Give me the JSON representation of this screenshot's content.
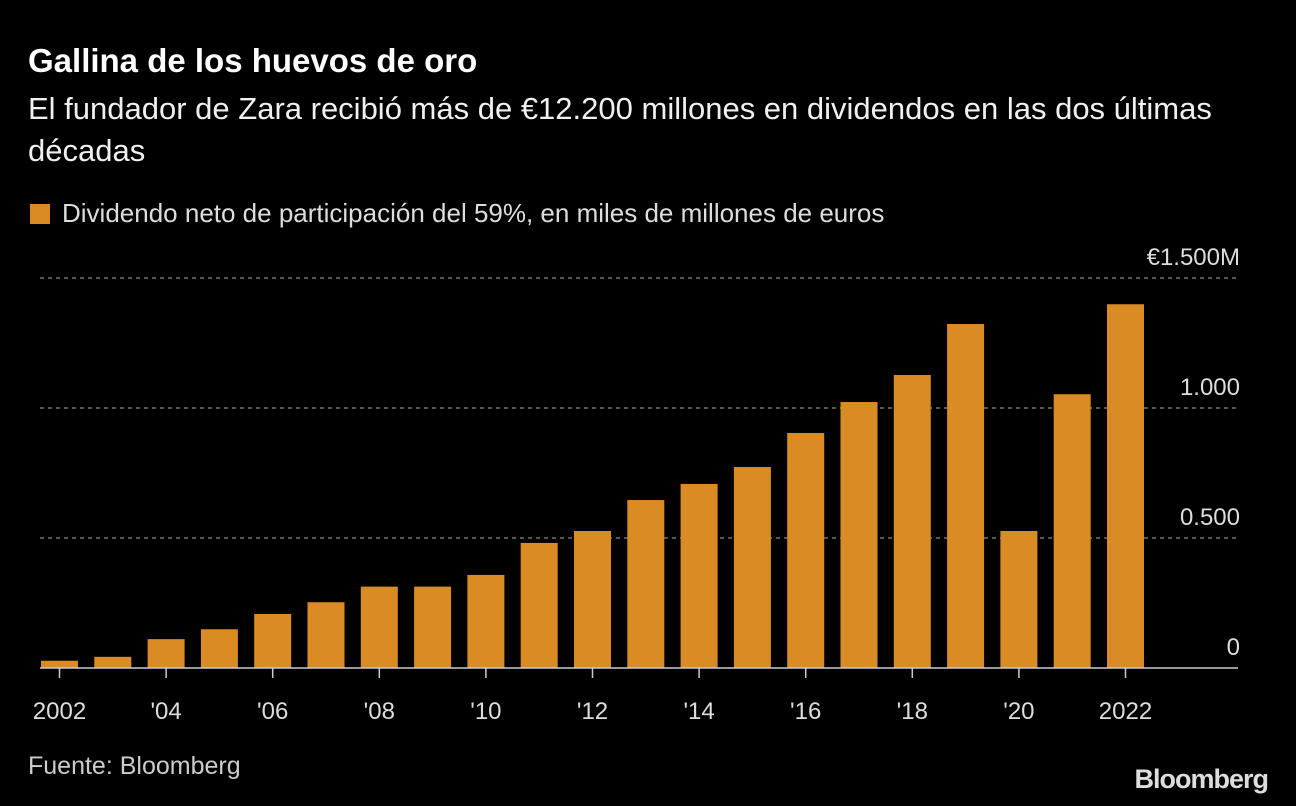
{
  "title": "Gallina de los huevos de oro",
  "subtitle": "El fundador de Zara recibió más de €12.200 millones en dividendos en las dos últimas décadas",
  "source": "Fuente: Bloomberg",
  "logo": "Bloomberg",
  "colors": {
    "bar": "#DA8B24",
    "background": "#000000",
    "grid": "#888888"
  },
  "chart_data": {
    "type": "bar",
    "title": "Gallina de los huevos de oro",
    "legend": [
      {
        "name": "Dividendo neto de participación del 59%, en miles de millones de euros",
        "color": "#DA8B24"
      }
    ],
    "legend_position": "top-left",
    "categories": [
      2002,
      2003,
      2004,
      2005,
      2006,
      2007,
      2008,
      2009,
      2010,
      2011,
      2012,
      2013,
      2014,
      2015,
      2016,
      2017,
      2018,
      2019,
      2020,
      2021,
      2022
    ],
    "values": [
      28,
      43,
      111,
      149,
      208,
      253,
      313,
      313,
      358,
      481,
      527,
      646,
      708,
      773,
      904,
      1023,
      1127,
      1323,
      527,
      1053,
      1399
    ],
    "x_tick_labels": [
      {
        "x": 2002,
        "label": "2002"
      },
      {
        "x": 2004,
        "label": "'04"
      },
      {
        "x": 2006,
        "label": "'06"
      },
      {
        "x": 2008,
        "label": "'08"
      },
      {
        "x": 2010,
        "label": "'10"
      },
      {
        "x": 2012,
        "label": "'12"
      },
      {
        "x": 2014,
        "label": "'14"
      },
      {
        "x": 2016,
        "label": "'16"
      },
      {
        "x": 2018,
        "label": "'18"
      },
      {
        "x": 2020,
        "label": "'20"
      },
      {
        "x": 2022,
        "label": "2022"
      }
    ],
    "y_ticks": [
      {
        "value": 0,
        "label": "0"
      },
      {
        "value": 500,
        "label": "0.500"
      },
      {
        "value": 1000,
        "label": "1.000"
      },
      {
        "value": 1500,
        "label": "€1.500M"
      }
    ],
    "ylim": [
      0,
      1500
    ],
    "y_axis_side": "right",
    "grid": "horizontal dotted",
    "xlabel": "",
    "ylabel": ""
  }
}
